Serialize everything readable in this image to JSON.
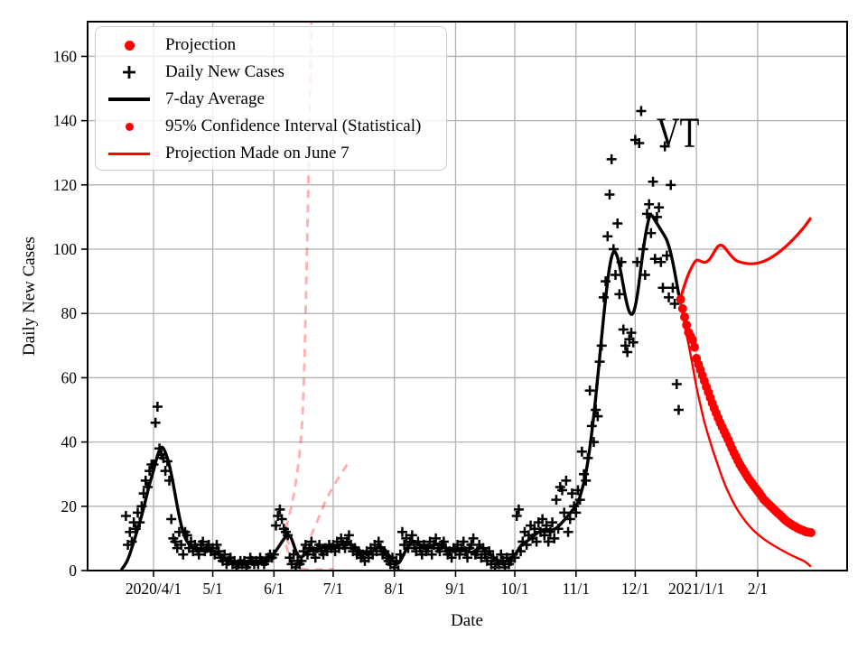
{
  "figure": {
    "state_annotation": "VT"
  },
  "colors": {
    "red": "#ff0000",
    "faded_projection": "rgba(255,0,0,0.32)",
    "black": "#000000",
    "grid": "#b0b0b0",
    "frame": "#000000",
    "legend_border": "#cccccc",
    "legend_bg": "rgba(255,255,255,0.8)"
  },
  "legend": {
    "items": [
      {
        "label": "Projection",
        "marker": "red-dot-large"
      },
      {
        "label": "Daily New Cases",
        "marker": "black-plus"
      },
      {
        "label": "7-day Average",
        "marker": "black-line"
      },
      {
        "label": "95% Confidence Interval (Statistical)",
        "marker": "red-dot-small"
      },
      {
        "label": "Projection Made on June 7",
        "marker": "red-line"
      }
    ]
  },
  "axes": {
    "xlabel": "Date",
    "ylabel": "Daily New Cases",
    "ylim": [
      0,
      170.8
    ],
    "yticks": [
      0,
      20,
      40,
      60,
      80,
      100,
      120,
      140,
      160
    ],
    "xticks": [
      {
        "date": "2020-04-01",
        "label": "2020/4/1"
      },
      {
        "date": "2020-05-01",
        "label": "5/1"
      },
      {
        "date": "2020-06-01",
        "label": "6/1"
      },
      {
        "date": "2020-07-01",
        "label": "7/1"
      },
      {
        "date": "2020-08-01",
        "label": "8/1"
      },
      {
        "date": "2020-09-01",
        "label": "9/1"
      },
      {
        "date": "2020-10-01",
        "label": "10/1"
      },
      {
        "date": "2020-11-01",
        "label": "11/1"
      },
      {
        "date": "2020-12-01",
        "label": "12/1"
      },
      {
        "date": "2021-01-01",
        "label": "2021/1/1"
      },
      {
        "date": "2021-02-01",
        "label": "2/1"
      }
    ]
  },
  "chart_data": {
    "type": "line+scatter",
    "title": "VT COVID-19 daily new cases with projections",
    "xlabel": "Date",
    "ylabel": "Daily New Cases",
    "grid": true,
    "legend_position": "upper-left",
    "daily_new_cases": {
      "name": "Daily New Cases",
      "start": "2020-03-18",
      "step_days": 1,
      "values": [
        17,
        8,
        12,
        9,
        15,
        13,
        18,
        15,
        20,
        24,
        28,
        26,
        31,
        33,
        33,
        46,
        51,
        38,
        36,
        35,
        31,
        34,
        28,
        16,
        10,
        9,
        7,
        12,
        8,
        5,
        12,
        11,
        7,
        9,
        6,
        8,
        7,
        5,
        8,
        9,
        6,
        7,
        8,
        6,
        7,
        5,
        8,
        6,
        4,
        3,
        5,
        2,
        3,
        4,
        2,
        3,
        1,
        2,
        3,
        2,
        3,
        1,
        2,
        4,
        3,
        2,
        3,
        2,
        4,
        3,
        2,
        3,
        4,
        5,
        4,
        5,
        14,
        17,
        19,
        16,
        13,
        12,
        11,
        4,
        2,
        5,
        1,
        3,
        2,
        3,
        6,
        8,
        5,
        7,
        9,
        6,
        4,
        7,
        8,
        6,
        5,
        7,
        6,
        8,
        7,
        8,
        6,
        9,
        7,
        10,
        8,
        7,
        9,
        11,
        8,
        6,
        7,
        5,
        6,
        4,
        5,
        3,
        6,
        4,
        7,
        5,
        8,
        6,
        9,
        7,
        5,
        6,
        4,
        3,
        2,
        4,
        1,
        3,
        0,
        5,
        12,
        8,
        10,
        7,
        9,
        11,
        8,
        6,
        9,
        7,
        5,
        8,
        6,
        7,
        9,
        5,
        8,
        10,
        7,
        6,
        8,
        9,
        7,
        5,
        6,
        4,
        7,
        6,
        8,
        5,
        7,
        9,
        6,
        4,
        7,
        8,
        10,
        5,
        6,
        8,
        4,
        7,
        5,
        3,
        6,
        2,
        4,
        1,
        3,
        2,
        5,
        3,
        1,
        4,
        2,
        3,
        5,
        4,
        17,
        19,
        6,
        9,
        12,
        8,
        11,
        14,
        10,
        13,
        9,
        15,
        12,
        16,
        11,
        14,
        9,
        12,
        15,
        10,
        22,
        13,
        26,
        25,
        18,
        28,
        12,
        16,
        24,
        20,
        18,
        25,
        22,
        37,
        30,
        28,
        35,
        56,
        45,
        40,
        50,
        48,
        65,
        70,
        85,
        90,
        104,
        117,
        128,
        100,
        92,
        108,
        86,
        96,
        75,
        70,
        68,
        72,
        74,
        71,
        134,
        96,
        133,
        143,
        100,
        92,
        111,
        114,
        105,
        121,
        97,
        110,
        113,
        96,
        88,
        132,
        98,
        85,
        120,
        88,
        83,
        58,
        50
      ]
    },
    "avg7": {
      "name": "7-day Average",
      "points": [
        [
          "2020-03-16",
          0.5
        ],
        [
          "2020-03-18",
          2
        ],
        [
          "2020-03-20",
          5
        ],
        [
          "2020-03-22",
          9
        ],
        [
          "2020-03-24",
          13
        ],
        [
          "2020-03-26",
          17
        ],
        [
          "2020-03-28",
          22
        ],
        [
          "2020-03-30",
          27
        ],
        [
          "2020-04-01",
          31
        ],
        [
          "2020-04-03",
          36
        ],
        [
          "2020-04-05",
          39
        ],
        [
          "2020-04-07",
          37
        ],
        [
          "2020-04-09",
          33
        ],
        [
          "2020-04-11",
          27
        ],
        [
          "2020-04-13",
          20
        ],
        [
          "2020-04-15",
          14
        ],
        [
          "2020-04-17",
          10
        ],
        [
          "2020-04-19",
          8
        ],
        [
          "2020-04-21",
          7
        ],
        [
          "2020-04-24",
          6.5
        ],
        [
          "2020-04-27",
          7
        ],
        [
          "2020-04-30",
          6.5
        ],
        [
          "2020-05-03",
          5.5
        ],
        [
          "2020-05-06",
          4
        ],
        [
          "2020-05-09",
          3
        ],
        [
          "2020-05-12",
          2.5
        ],
        [
          "2020-05-15",
          2.2
        ],
        [
          "2020-05-18",
          2.5
        ],
        [
          "2020-05-21",
          3
        ],
        [
          "2020-05-24",
          2.5
        ],
        [
          "2020-05-27",
          3
        ],
        [
          "2020-05-30",
          4
        ],
        [
          "2020-06-02",
          6
        ],
        [
          "2020-06-05",
          9
        ],
        [
          "2020-06-08",
          11.5
        ],
        [
          "2020-06-10",
          10
        ],
        [
          "2020-06-12",
          6
        ],
        [
          "2020-06-14",
          4
        ],
        [
          "2020-06-16",
          4.5
        ],
        [
          "2020-06-18",
          6
        ],
        [
          "2020-06-20",
          7
        ],
        [
          "2020-06-23",
          6.5
        ],
        [
          "2020-06-26",
          7.5
        ],
        [
          "2020-06-29",
          7
        ],
        [
          "2020-07-02",
          7.5
        ],
        [
          "2020-07-05",
          8
        ],
        [
          "2020-07-08",
          8.5
        ],
        [
          "2020-07-11",
          8
        ],
        [
          "2020-07-14",
          6.5
        ],
        [
          "2020-07-17",
          5
        ],
        [
          "2020-07-20",
          5.5
        ],
        [
          "2020-07-23",
          7
        ],
        [
          "2020-07-26",
          7.5
        ],
        [
          "2020-07-29",
          5
        ],
        [
          "2020-08-01",
          2.5
        ],
        [
          "2020-08-03",
          2
        ],
        [
          "2020-08-05",
          4
        ],
        [
          "2020-08-08",
          8
        ],
        [
          "2020-08-11",
          9.5
        ],
        [
          "2020-08-14",
          8
        ],
        [
          "2020-08-17",
          7
        ],
        [
          "2020-08-20",
          7.5
        ],
        [
          "2020-08-23",
          8.5
        ],
        [
          "2020-08-26",
          7.5
        ],
        [
          "2020-08-29",
          6.5
        ],
        [
          "2020-09-01",
          6.5
        ],
        [
          "2020-09-04",
          7
        ],
        [
          "2020-09-07",
          6
        ],
        [
          "2020-09-10",
          5.5
        ],
        [
          "2020-09-13",
          7.5
        ],
        [
          "2020-09-16",
          6.5
        ],
        [
          "2020-09-19",
          5
        ],
        [
          "2020-09-22",
          3
        ],
        [
          "2020-09-25",
          2.8
        ],
        [
          "2020-09-28",
          3.2
        ],
        [
          "2020-10-01",
          4.5
        ],
        [
          "2020-10-04",
          8
        ],
        [
          "2020-10-07",
          9
        ],
        [
          "2020-10-10",
          10.5
        ],
        [
          "2020-10-13",
          12
        ],
        [
          "2020-10-16",
          13
        ],
        [
          "2020-10-19",
          12.5
        ],
        [
          "2020-10-22",
          13
        ],
        [
          "2020-10-25",
          15
        ],
        [
          "2020-10-28",
          17
        ],
        [
          "2020-10-31",
          19.5
        ],
        [
          "2020-11-02",
          21
        ],
        [
          "2020-11-04",
          25
        ],
        [
          "2020-11-06",
          30
        ],
        [
          "2020-11-08",
          38
        ],
        [
          "2020-11-10",
          48
        ],
        [
          "2020-11-12",
          60
        ],
        [
          "2020-11-14",
          73
        ],
        [
          "2020-11-16",
          85
        ],
        [
          "2020-11-18",
          95
        ],
        [
          "2020-11-20",
          100
        ],
        [
          "2020-11-22",
          98
        ],
        [
          "2020-11-24",
          92
        ],
        [
          "2020-11-26",
          85
        ],
        [
          "2020-11-28",
          80
        ],
        [
          "2020-11-30",
          79.5
        ],
        [
          "2020-12-02",
          85
        ],
        [
          "2020-12-04",
          95
        ],
        [
          "2020-12-06",
          104
        ],
        [
          "2020-12-08",
          110
        ],
        [
          "2020-12-09",
          111
        ],
        [
          "2020-12-11",
          109
        ],
        [
          "2020-12-13",
          107
        ],
        [
          "2020-12-15",
          105
        ],
        [
          "2020-12-17",
          103
        ],
        [
          "2020-12-19",
          99
        ],
        [
          "2020-12-21",
          93
        ],
        [
          "2020-12-23",
          86
        ]
      ]
    },
    "projection_dots": {
      "name": "Projection",
      "start": "2020-12-24",
      "step_days": 1,
      "values": [
        84.4,
        81.5,
        78.9,
        76.4,
        74.1,
        72.9,
        71.8,
        69.5,
        66.0,
        64.2,
        62.5,
        60.7,
        59.0,
        57.2,
        55.5,
        53.8,
        52.1,
        50.5,
        49.0,
        47.5,
        46.0,
        44.7,
        43.4,
        42.1,
        40.8,
        39.4,
        38.0,
        36.7,
        35.5,
        34.2,
        33.0,
        32.0,
        31.0,
        30.0,
        29.0,
        28.1,
        27.3,
        26.4,
        25.6,
        24.8,
        24.0,
        23.1,
        22.2,
        21.6,
        21.0,
        20.4,
        19.8,
        19.2,
        18.6,
        18.0,
        17.5,
        16.9,
        16.3,
        15.7,
        15.2,
        14.8,
        14.4,
        14.0,
        13.7,
        13.3,
        13.0,
        12.7,
        12.5,
        12.2,
        12.0,
        11.9,
        11.8
      ]
    },
    "ci_upper": {
      "name": "95% Confidence Interval upper",
      "points": [
        [
          "2020-12-24",
          85
        ],
        [
          "2020-12-27",
          91
        ],
        [
          "2020-12-30",
          95
        ],
        [
          "2021-01-01",
          96.8
        ],
        [
          "2021-01-03",
          96.3
        ],
        [
          "2021-01-05",
          95.8
        ],
        [
          "2021-01-07",
          96.3
        ],
        [
          "2021-01-09",
          98
        ],
        [
          "2021-01-11",
          100.3
        ],
        [
          "2021-01-13",
          101.5
        ],
        [
          "2021-01-15",
          100.8
        ],
        [
          "2021-01-18",
          98.3
        ],
        [
          "2021-01-21",
          96.4
        ],
        [
          "2021-01-24",
          95.8
        ],
        [
          "2021-01-28",
          95.4
        ],
        [
          "2021-02-01",
          95.6
        ],
        [
          "2021-02-05",
          96.4
        ],
        [
          "2021-02-09",
          97.8
        ],
        [
          "2021-02-13",
          99.6
        ],
        [
          "2021-02-17",
          101.8
        ],
        [
          "2021-02-21",
          104.3
        ],
        [
          "2021-02-25",
          107.2
        ],
        [
          "2021-02-28",
          109.8
        ]
      ]
    },
    "ci_lower": {
      "name": "95% Confidence Interval lower",
      "points": [
        [
          "2020-12-24",
          84
        ],
        [
          "2020-12-26",
          76
        ],
        [
          "2020-12-28",
          70.5
        ],
        [
          "2020-12-30",
          64
        ],
        [
          "2021-01-01",
          57
        ],
        [
          "2021-01-03",
          51.5
        ],
        [
          "2021-01-05",
          46.2
        ],
        [
          "2021-01-07",
          42
        ],
        [
          "2021-01-09",
          38
        ],
        [
          "2021-01-12",
          32.5
        ],
        [
          "2021-01-15",
          27.3
        ],
        [
          "2021-01-18",
          23.2
        ],
        [
          "2021-01-21",
          19.6
        ],
        [
          "2021-01-24",
          16.8
        ],
        [
          "2021-01-27",
          14.4
        ],
        [
          "2021-01-30",
          12.4
        ],
        [
          "2021-02-02",
          10.8
        ],
        [
          "2021-02-05",
          9.4
        ],
        [
          "2021-02-08",
          8.2
        ],
        [
          "2021-02-11",
          7.1
        ],
        [
          "2021-02-14",
          6.1
        ],
        [
          "2021-02-17",
          5.1
        ],
        [
          "2021-02-20",
          4.2
        ],
        [
          "2021-02-23",
          3.4
        ],
        [
          "2021-02-25",
          2.8
        ],
        [
          "2021-02-27",
          1.8
        ],
        [
          "2021-02-28",
          1.2
        ]
      ]
    },
    "june7_upper": {
      "name": "Projection Made on June 7 (upper CI)",
      "points": [
        [
          "2020-06-07",
          13
        ],
        [
          "2020-06-08",
          15.5
        ],
        [
          "2020-06-10",
          20
        ],
        [
          "2020-06-12",
          27
        ],
        [
          "2020-06-14",
          36
        ],
        [
          "2020-06-16",
          51
        ],
        [
          "2020-06-18",
          107
        ],
        [
          "2020-06-19",
          138
        ],
        [
          "2020-06-20",
          172
        ]
      ]
    },
    "june7_median": {
      "name": "Projection Made on June 7 (median)",
      "points": [
        [
          "2020-06-07",
          10.5
        ],
        [
          "2020-06-09",
          7.5
        ],
        [
          "2020-06-11",
          5.8
        ],
        [
          "2020-06-13",
          5.3
        ],
        [
          "2020-06-15",
          6
        ],
        [
          "2020-06-17",
          7.5
        ],
        [
          "2020-06-19",
          10
        ],
        [
          "2020-06-21",
          12.5
        ],
        [
          "2020-06-23",
          15.5
        ],
        [
          "2020-06-25",
          18.5
        ],
        [
          "2020-06-27",
          21.5
        ],
        [
          "2020-06-29",
          24
        ],
        [
          "2020-07-01",
          26
        ],
        [
          "2020-07-03",
          28.2
        ],
        [
          "2020-07-05",
          30.2
        ],
        [
          "2020-07-07",
          32
        ],
        [
          "2020-07-08",
          33
        ]
      ]
    },
    "june7_lower": {
      "name": "Projection Made on June 7 (lower CI)",
      "points": [
        [
          "2020-06-07",
          8
        ],
        [
          "2020-06-09",
          4
        ],
        [
          "2020-06-11",
          2
        ],
        [
          "2020-06-13",
          1
        ],
        [
          "2020-06-15",
          0.6
        ],
        [
          "2020-06-18",
          0.4
        ],
        [
          "2020-06-22",
          0.3
        ],
        [
          "2020-06-26",
          0.4
        ],
        [
          "2020-07-01",
          0.5
        ]
      ]
    }
  }
}
